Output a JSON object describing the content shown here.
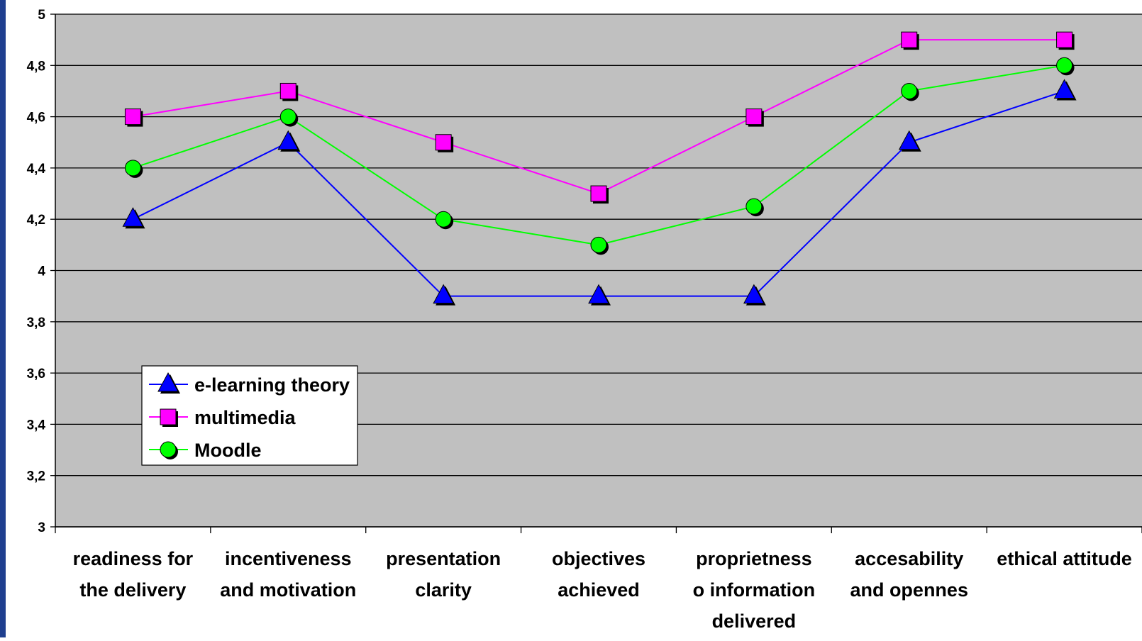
{
  "chart_data": {
    "type": "line",
    "title": "",
    "xlabel": "",
    "ylabel": "",
    "ylim": [
      3,
      5
    ],
    "y_ticks": [
      "3",
      "3,2",
      "3,4",
      "3,6",
      "3,8",
      "4",
      "4,2",
      "4,4",
      "4,6",
      "4,8",
      "5"
    ],
    "y_tick_values": [
      3,
      3.2,
      3.4,
      3.6,
      3.8,
      4,
      4.2,
      4.4,
      4.6,
      4.8,
      5
    ],
    "categories": [
      [
        "readiness for",
        "the delivery"
      ],
      [
        "incentiveness",
        "and motivation"
      ],
      [
        "presentation",
        "clarity"
      ],
      [
        "objectives",
        "achieved"
      ],
      [
        "proprietness",
        "o information",
        "delivered"
      ],
      [
        "accesability",
        "and opennes"
      ],
      [
        "ethical attitude"
      ]
    ],
    "grid": true,
    "legend_position": "bottom-left",
    "plot_background": "#c0c0c0",
    "series": [
      {
        "name": "e-learning theory",
        "marker": "triangle",
        "color": "#0000ff",
        "values": [
          4.2,
          4.5,
          3.9,
          3.9,
          3.9,
          4.5,
          4.7
        ]
      },
      {
        "name": "multimedia",
        "marker": "square",
        "color": "#ff00ff",
        "values": [
          4.6,
          4.7,
          4.5,
          4.3,
          4.6,
          4.9,
          4.9
        ]
      },
      {
        "name": "Moodle",
        "marker": "circle",
        "color": "#00ff00",
        "values": [
          4.4,
          4.6,
          4.2,
          4.1,
          4.25,
          4.7,
          4.8
        ]
      }
    ]
  }
}
